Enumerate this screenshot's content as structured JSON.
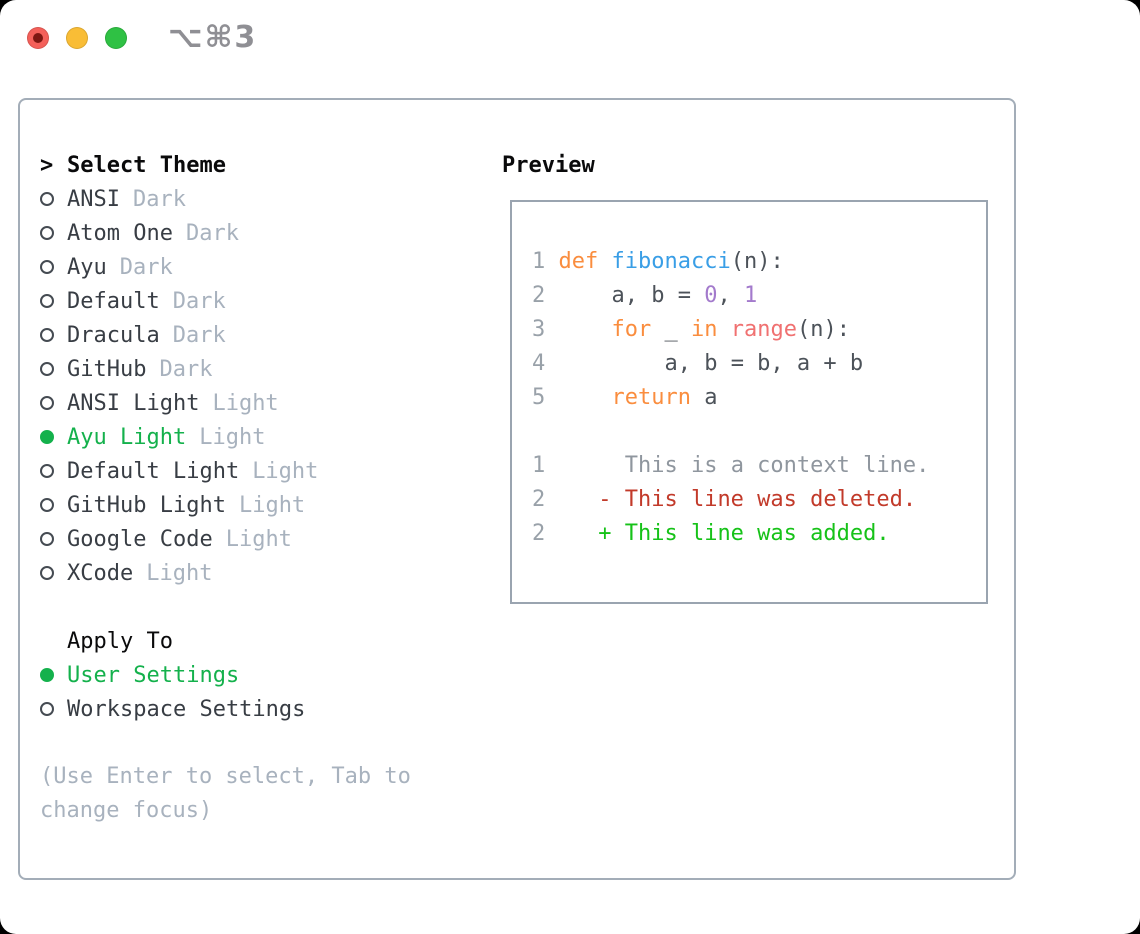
{
  "window": {
    "shortcut": "⌥⌘3",
    "controls": [
      {
        "name": "close-button",
        "color_key": "light-red",
        "has_dot": true
      },
      {
        "name": "minimize-button",
        "color_key": "light-yellow",
        "has_dot": false
      },
      {
        "name": "zoom-button",
        "color_key": "light-green",
        "has_dot": false
      }
    ]
  },
  "theme_panel": {
    "prompt": ">",
    "title": "Select Theme",
    "items": [
      {
        "name": "ANSI",
        "variant": "Dark",
        "selected": false
      },
      {
        "name": "Atom One",
        "variant": "Dark",
        "selected": false
      },
      {
        "name": "Ayu",
        "variant": "Dark",
        "selected": false
      },
      {
        "name": "Default",
        "variant": "Dark",
        "selected": false
      },
      {
        "name": "Dracula",
        "variant": "Dark",
        "selected": false
      },
      {
        "name": "GitHub",
        "variant": "Dark",
        "selected": false
      },
      {
        "name": "ANSI Light",
        "variant": "Light",
        "selected": false
      },
      {
        "name": "Ayu Light",
        "variant": "Light",
        "selected": true
      },
      {
        "name": "Default Light",
        "variant": "Light",
        "selected": false
      },
      {
        "name": "GitHub Light",
        "variant": "Light",
        "selected": false
      },
      {
        "name": "Google Code",
        "variant": "Light",
        "selected": false
      },
      {
        "name": "XCode",
        "variant": "Light",
        "selected": false
      }
    ]
  },
  "apply_to": {
    "title": "Apply To",
    "options": [
      {
        "label": "User Settings",
        "selected": true
      },
      {
        "label": "Workspace Settings",
        "selected": false
      }
    ]
  },
  "hint": "(Use Enter to select, Tab to change focus)",
  "preview": {
    "title": "Preview",
    "code_lines": [
      [
        [
          "num",
          "1"
        ],
        [
          "sp",
          " "
        ],
        [
          "kw",
          "def"
        ],
        [
          "fg",
          " "
        ],
        [
          "fn",
          "fibonacci"
        ],
        [
          "fg",
          "(n):"
        ]
      ],
      [
        [
          "num",
          "2"
        ],
        [
          "sp",
          "     "
        ],
        [
          "fg",
          "a, b = "
        ],
        [
          "lit",
          "0"
        ],
        [
          "fg",
          ", "
        ],
        [
          "lit",
          "1"
        ]
      ],
      [
        [
          "num",
          "3"
        ],
        [
          "sp",
          "     "
        ],
        [
          "kw",
          "for"
        ],
        [
          "fg",
          " _ "
        ],
        [
          "kw",
          "in"
        ],
        [
          "fg",
          " "
        ],
        [
          "call",
          "range"
        ],
        [
          "fg",
          "(n):"
        ]
      ],
      [
        [
          "num",
          "4"
        ],
        [
          "sp",
          "         "
        ],
        [
          "fg",
          "a, b = b, a + b"
        ]
      ],
      [
        [
          "num",
          "5"
        ],
        [
          "sp",
          "     "
        ],
        [
          "kw",
          "return"
        ],
        [
          "fg",
          " a"
        ]
      ],
      [],
      [
        [
          "num",
          "1"
        ],
        [
          "sp",
          "      "
        ],
        [
          "ctx",
          "This is a context line."
        ]
      ],
      [
        [
          "num",
          "2"
        ],
        [
          "sp",
          "    "
        ],
        [
          "del",
          "- This line was deleted."
        ]
      ],
      [
        [
          "num",
          "2"
        ],
        [
          "sp",
          "    "
        ],
        [
          "add",
          "+ This line was added."
        ]
      ]
    ]
  },
  "colors": {
    "page-bg": "#000000",
    "card-bg": "#ffffff",
    "panel-border": "#a3adb8",
    "box-border": "#9aa4b0",
    "title": "#0a0a0b",
    "name": "#383d44",
    "variant": "#a8b2be",
    "hint": "#a8b2be",
    "circle": "#454b52",
    "green": "#14b14c",
    "shortcut": "#8f8f94",
    "light-red": "#f4605a",
    "light-red-dot": "#7e1712",
    "light-yellow": "#f9bd36",
    "light-green": "#2fc144",
    "num": "#99a1a9",
    "fg": "#4c5259",
    "kw": "#fa8d3e",
    "fn": "#399ee6",
    "call": "#f07171",
    "lit": "#a37acc",
    "ctx": "#8f969e",
    "del": "#c23a2a",
    "add": "#16c218"
  }
}
